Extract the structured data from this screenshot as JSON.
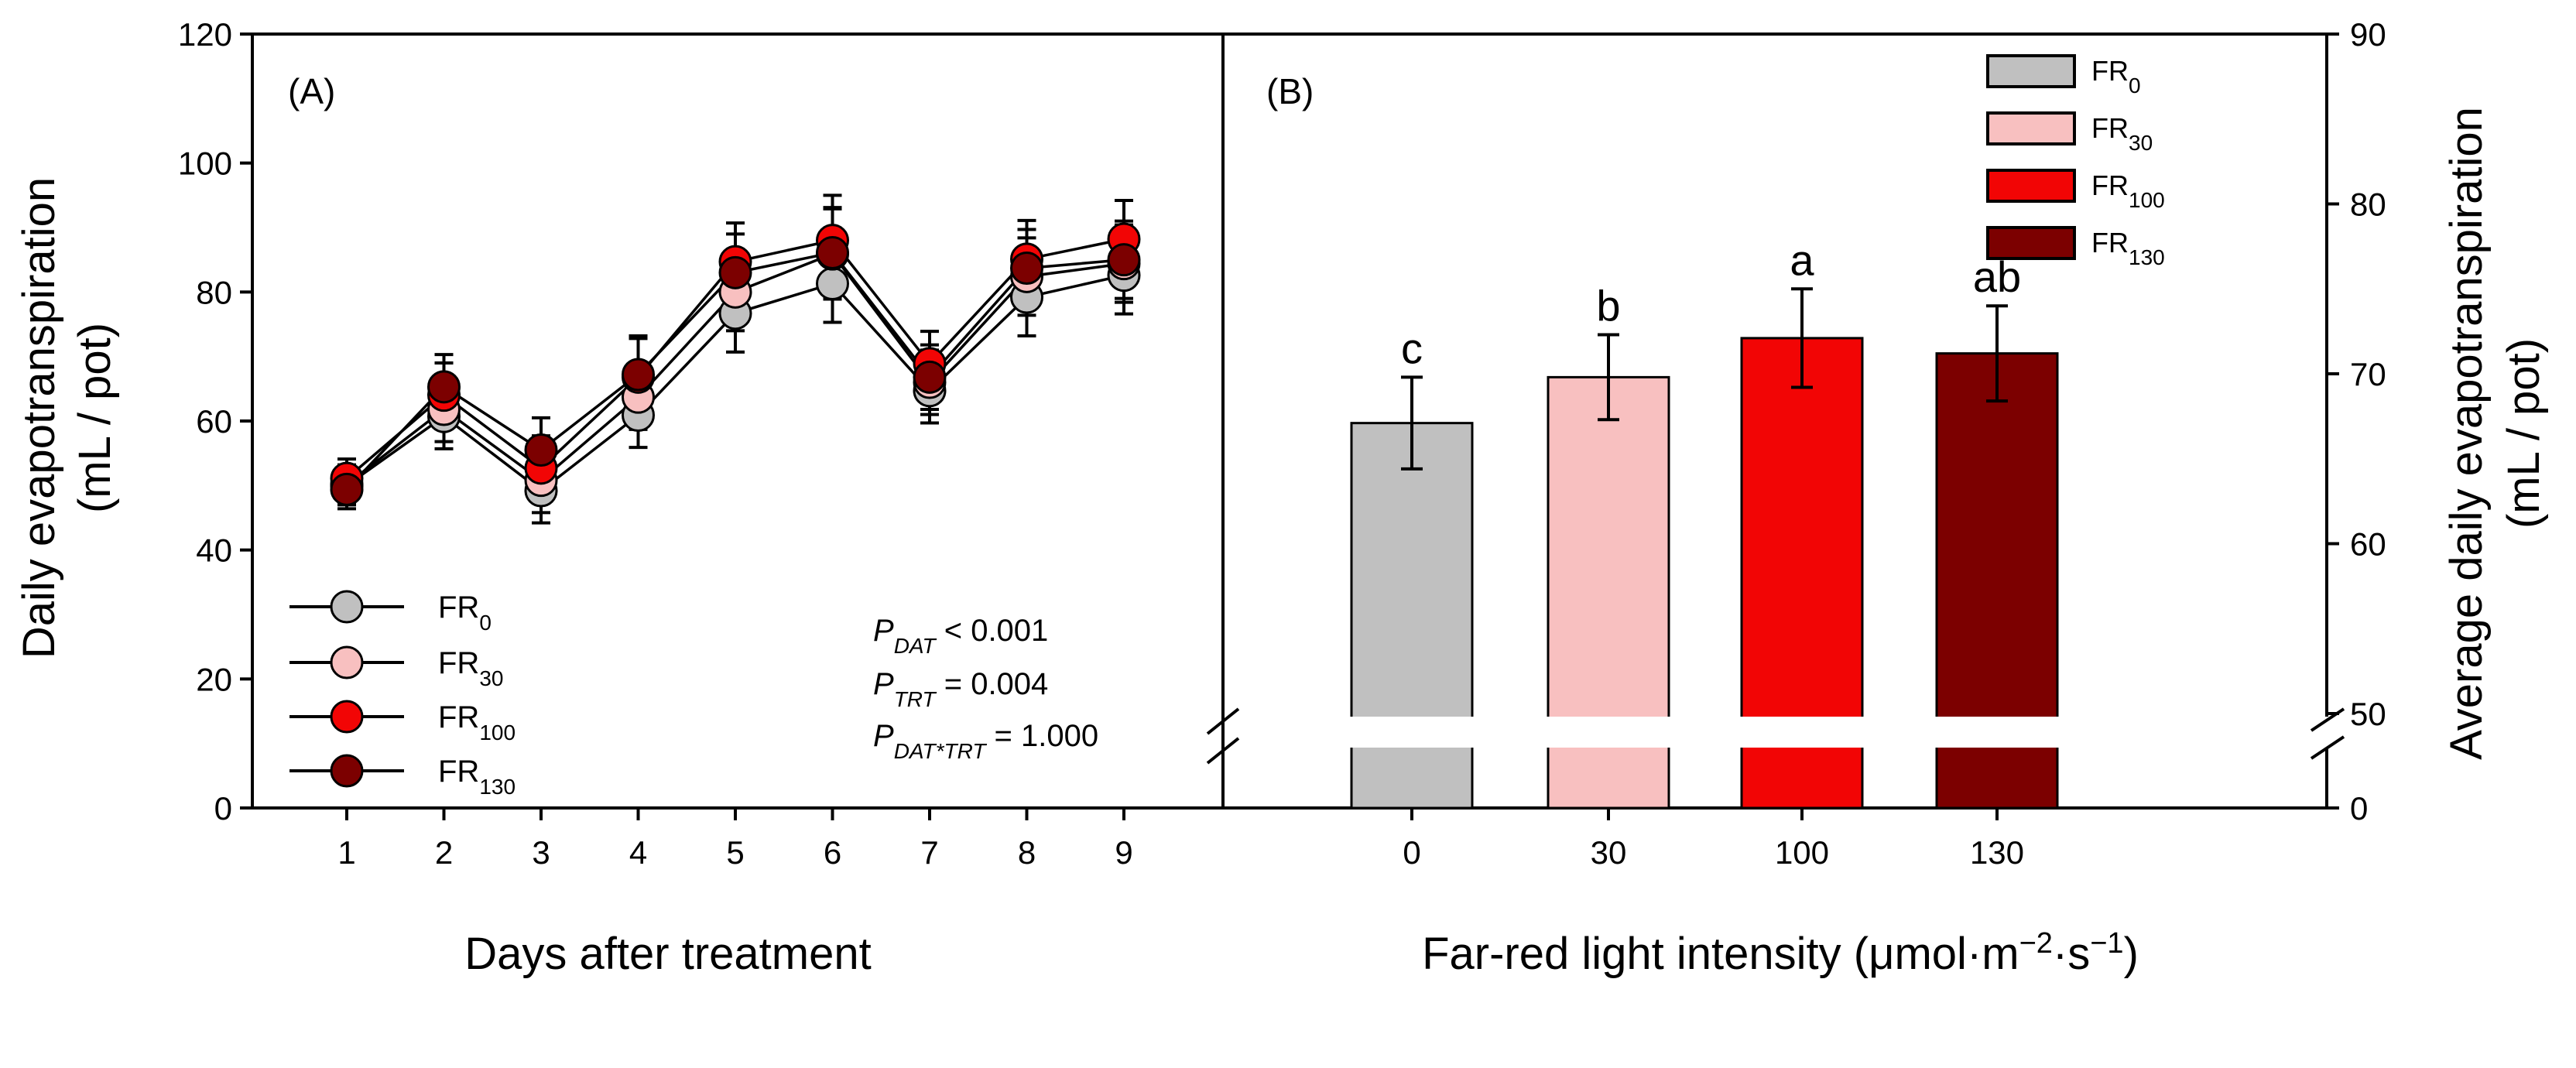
{
  "chart_data": [
    {
      "type": "line",
      "panel_label": "(A)",
      "xlabel": "Days after treatment",
      "ylabel_line1": "Daily evapotranspiration",
      "ylabel_line2": "(mL / pot)",
      "x": [
        1,
        2,
        3,
        4,
        5,
        6,
        7,
        8,
        9
      ],
      "x_ticks": [
        "1",
        "2",
        "3",
        "4",
        "5",
        "6",
        "7",
        "8",
        "9"
      ],
      "ylim": [
        0,
        120
      ],
      "y_ticks": [
        "0",
        "20",
        "40",
        "60",
        "80",
        "100",
        "120"
      ],
      "legend_position": "bottom-left",
      "series": [
        {
          "name": "FR",
          "sub": "0",
          "color": "#c0c0c0",
          "values": [
            50.0,
            60.7,
            49.2,
            60.9,
            76.7,
            81.3,
            64.7,
            79.2,
            82.6
          ],
          "errors": [
            3,
            5,
            5,
            5,
            6,
            6,
            5,
            6,
            6
          ]
        },
        {
          "name": "FR",
          "sub": "30",
          "color": "#f8c0c0",
          "values": [
            50.2,
            61.8,
            50.8,
            63.7,
            80.0,
            85.9,
            66.0,
            82.4,
            84.4
          ],
          "errors": [
            3,
            5,
            5,
            5,
            6,
            7,
            5,
            6,
            6
          ]
        },
        {
          "name": "FR",
          "sub": "100",
          "color": "#f20505",
          "values": [
            51.1,
            64.0,
            52.7,
            66.8,
            84.7,
            88.0,
            68.9,
            85.1,
            88.2
          ],
          "errors": [
            3,
            5,
            5,
            6,
            6,
            7,
            5,
            6,
            6
          ]
        },
        {
          "name": "FR",
          "sub": "130",
          "color": "#7c0000",
          "values": [
            49.4,
            65.3,
            55.5,
            67.2,
            83.0,
            86.1,
            66.8,
            83.7,
            85.0
          ],
          "errors": [
            3,
            5,
            5,
            6,
            6,
            7,
            5,
            6,
            6
          ]
        }
      ],
      "annotations": [
        {
          "p": "P",
          "sub": "DAT",
          "text": " < 0.001"
        },
        {
          "p": "P",
          "sub": "TRT",
          "text": " = 0.004"
        },
        {
          "p": "P",
          "sub": "DAT*TRT",
          "text": " = 1.000"
        }
      ]
    },
    {
      "type": "bar",
      "panel_label": "(B)",
      "xlabel_parts": [
        "Far-red light intensity (μmol·m",
        "−2",
        "·s",
        "−1",
        ")"
      ],
      "ylabel_line1": "Average daily evapotranspiration",
      "ylabel_line2": "(mL / pot)",
      "categories": [
        "0",
        "30",
        "100",
        "130"
      ],
      "values": [
        67.1,
        69.8,
        72.1,
        71.2
      ],
      "errors": [
        2.7,
        2.5,
        2.9,
        2.8
      ],
      "letters": [
        "c",
        "b",
        "a",
        "ab"
      ],
      "colors": [
        "#c0c0c0",
        "#f8c0c0",
        "#f20505",
        "#7c0000"
      ],
      "legend": [
        {
          "name": "FR",
          "sub": "0"
        },
        {
          "name": "FR",
          "sub": "30"
        },
        {
          "name": "FR",
          "sub": "100"
        },
        {
          "name": "FR",
          "sub": "130"
        }
      ],
      "ylim": [
        0,
        90
      ],
      "axis_break": [
        0,
        50
      ],
      "y_ticks_upper": [
        "50",
        "60",
        "70",
        "80",
        "90"
      ],
      "y_tick_zero": "0",
      "legend_position": "top-right"
    }
  ]
}
